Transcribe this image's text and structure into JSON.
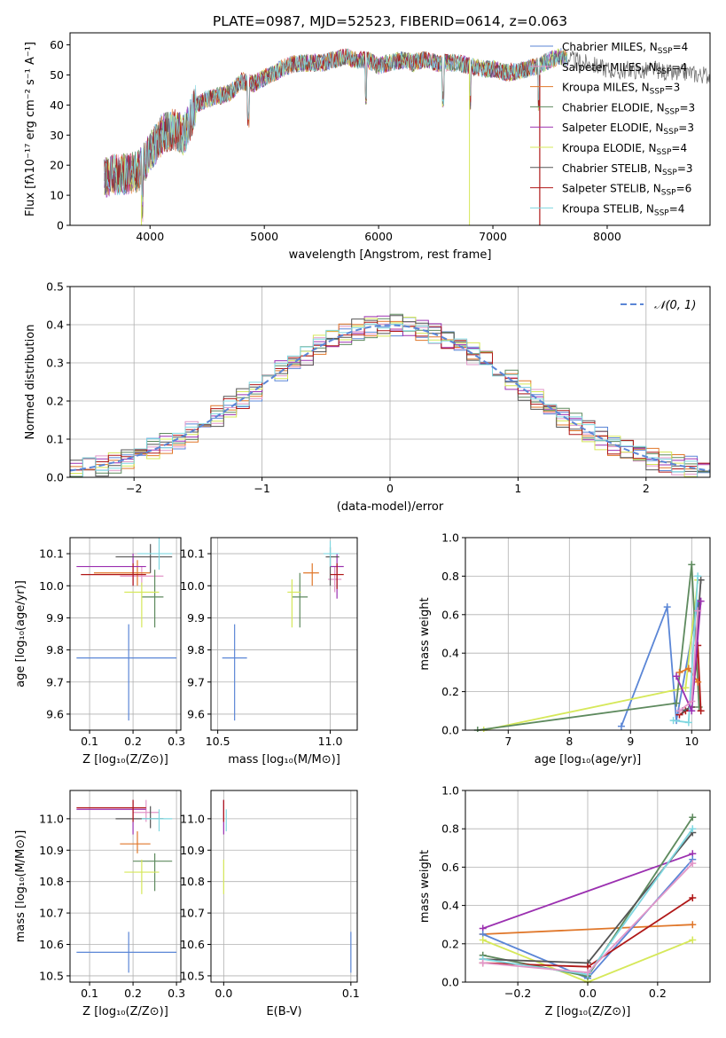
{
  "colors": {
    "Chabrier MILES": "#5b86d6",
    "Salpeter MILES": "#e296c8",
    "Kroupa MILES": "#e0772a",
    "Chabrier ELODIE": "#5e8a5e",
    "Salpeter ELODIE": "#9b30b0",
    "Kroupa ELODIE": "#d6e85a",
    "Chabrier STELIB": "#555555",
    "Salpeter STELIB": "#b01818",
    "Kroupa STELIB": "#7fd7e0"
  },
  "chart_data": [
    {
      "type": "line",
      "title": "PLATE=0987, MJD=52523, FIBERID=0614, z=0.063",
      "xlabel": "wavelength [Angstrom, rest frame]",
      "ylabel": "Flux [fλ10⁻¹⁷ erg cm⁻² s⁻¹ A⁻¹]",
      "xlim": [
        3300,
        8900
      ],
      "ylim": [
        0,
        64
      ],
      "xticks": [
        "4000",
        "5000",
        "6000",
        "7000",
        "8000"
      ],
      "yticks": [
        "0",
        "10",
        "20",
        "30",
        "40",
        "50",
        "60"
      ],
      "legend_loc": "right",
      "series": [
        {
          "name": "Chabrier MILES",
          "legend": "Chabrier MILES, N",
          "sub": "SSP",
          "suffix": "=4"
        },
        {
          "name": "Salpeter MILES",
          "legend": "Salpeter MILES, N",
          "sub": "SSP",
          "suffix": "=4"
        },
        {
          "name": "Kroupa MILES",
          "legend": "Kroupa MILES, N",
          "sub": "SSP",
          "suffix": "=3"
        },
        {
          "name": "Chabrier ELODIE",
          "legend": "Chabrier ELODIE, N",
          "sub": "SSP",
          "suffix": "=3"
        },
        {
          "name": "Salpeter ELODIE",
          "legend": "Salpeter ELODIE, N",
          "sub": "SSP",
          "suffix": "=3"
        },
        {
          "name": "Kroupa ELODIE",
          "legend": "Kroupa ELODIE, N",
          "sub": "SSP",
          "suffix": "=4"
        },
        {
          "name": "Chabrier STELIB",
          "legend": "Chabrier STELIB, N",
          "sub": "SSP",
          "suffix": "=3"
        },
        {
          "name": "Salpeter STELIB",
          "legend": "Salpeter STELIB, N",
          "sub": "SSP",
          "suffix": "=6"
        },
        {
          "name": "Kroupa STELIB",
          "legend": "Kroupa STELIB, N",
          "sub": "SSP",
          "suffix": "=4"
        }
      ],
      "spectrum_envelope": {
        "x": [
          3600,
          3700,
          3800,
          3900,
          4000,
          4100,
          4200,
          4300,
          4400,
          4500,
          4600,
          4700,
          4800,
          4900,
          5000,
          5100,
          5200,
          5300,
          5400,
          5500,
          5600,
          5700,
          5800,
          5900,
          6000,
          6100,
          6200,
          6300,
          6400,
          6500,
          6600,
          6700,
          6800,
          6900,
          7000,
          7100,
          7200,
          7300,
          7400,
          7500,
          7600,
          7700,
          7800,
          7900,
          8000,
          8100,
          8200,
          8300,
          8400,
          8500,
          8600,
          8700,
          8800,
          8900
        ],
        "y": [
          16,
          17,
          17,
          18,
          24,
          30,
          32,
          30,
          40,
          42,
          43,
          44,
          48,
          47,
          49,
          51,
          53,
          54,
          54,
          54,
          55,
          56,
          55,
          55,
          53,
          54,
          55,
          54,
          55,
          54,
          54,
          54,
          53,
          52,
          52,
          51,
          51,
          52,
          53,
          55,
          56,
          55,
          54,
          53,
          52,
          51,
          52,
          51,
          52,
          51,
          50,
          51,
          50,
          50
        ]
      },
      "spectrum_features": {
        "absorption_dips_x": [
          3933,
          4861,
          5890,
          6563,
          6800,
          7400
        ]
      }
    },
    {
      "type": "step",
      "xlabel": "(data-model)/error",
      "ylabel": "Normed distribution",
      "xlim": [
        -2.5,
        2.5
      ],
      "ylim": [
        0,
        0.5
      ],
      "xticks": [
        "−2",
        "−1",
        "0",
        "1",
        "2"
      ],
      "yticks": [
        "0.0",
        "0.1",
        "0.2",
        "0.3",
        "0.4",
        "0.5"
      ],
      "legend": "𝒩(0, 1)",
      "legend_loc": "upper right",
      "bin_width": 0.1,
      "bin_start": -2.5,
      "reference_gaussian": {
        "mean": 0,
        "sigma": 1,
        "style": "dashed",
        "color": "#5b86d6"
      },
      "series": [
        {
          "name": "Chabrier MILES",
          "noise_seed": 1
        },
        {
          "name": "Salpeter MILES",
          "noise_seed": 2
        },
        {
          "name": "Kroupa MILES",
          "noise_seed": 3
        },
        {
          "name": "Chabrier ELODIE",
          "noise_seed": 4
        },
        {
          "name": "Salpeter ELODIE",
          "noise_seed": 5
        },
        {
          "name": "Kroupa ELODIE",
          "noise_seed": 6
        },
        {
          "name": "Chabrier STELIB",
          "noise_seed": 7
        },
        {
          "name": "Salpeter STELIB",
          "noise_seed": 8
        },
        {
          "name": "Kroupa STELIB",
          "noise_seed": 9
        }
      ]
    },
    {
      "type": "scatter",
      "xlabel": "Z [log₁₀(Z/Z⊙)]",
      "ylabel": "age  [log₁₀(age/yr)]",
      "xlim": [
        0.055,
        0.31
      ],
      "ylim": [
        9.55,
        10.15
      ],
      "xticks": [
        "0.1",
        "0.2",
        "0.3"
      ],
      "yticks": [
        "9.6",
        "9.7",
        "9.8",
        "9.9",
        "10.0",
        "10.1"
      ],
      "points": [
        {
          "name": "Chabrier MILES",
          "x": 0.19,
          "xerr": [
            0.07,
            0.3
          ],
          "y": 9.775,
          "yerr": [
            9.58,
            9.88
          ]
        },
        {
          "name": "Salpeter MILES",
          "x": 0.22,
          "xerr": [
            0.17,
            0.27
          ],
          "y": 10.03,
          "yerr": [
            10.0,
            10.06
          ]
        },
        {
          "name": "Kroupa MILES",
          "x": 0.21,
          "xerr": [
            0.11,
            0.24
          ],
          "y": 10.04,
          "yerr": [
            10.0,
            10.08
          ]
        },
        {
          "name": "Chabrier ELODIE",
          "x": 0.25,
          "xerr": [
            0.22,
            0.27
          ],
          "y": 9.965,
          "yerr": [
            9.87,
            10.05
          ]
        },
        {
          "name": "Salpeter ELODIE",
          "x": 0.2,
          "xerr": [
            0.07,
            0.23
          ],
          "y": 10.06,
          "yerr": [
            10.0,
            10.1
          ]
        },
        {
          "name": "Kroupa ELODIE",
          "x": 0.22,
          "xerr": [
            0.18,
            0.26
          ],
          "y": 9.98,
          "yerr": [
            9.87,
            10.01
          ]
        },
        {
          "name": "Chabrier STELIB",
          "x": 0.24,
          "xerr": [
            0.16,
            0.29
          ],
          "y": 10.09,
          "yerr": [
            10.04,
            10.13
          ]
        },
        {
          "name": "Salpeter STELIB",
          "x": 0.2,
          "xerr": [
            0.08,
            0.23
          ],
          "y": 10.035,
          "yerr": [
            10.0,
            10.07
          ]
        },
        {
          "name": "Kroupa STELIB",
          "x": 0.26,
          "xerr": [
            0.21,
            0.29
          ],
          "y": 10.1,
          "yerr": [
            10.05,
            10.15
          ]
        }
      ]
    },
    {
      "type": "scatter",
      "xlabel": "mass [log₁₀(M/M⊙)]",
      "ylabel": "",
      "xlim": [
        10.47,
        11.12
      ],
      "ylim": [
        9.55,
        10.15
      ],
      "xticks": [
        "10.5",
        "11.0"
      ],
      "yticks": [
        "9.6",
        "9.7",
        "9.8",
        "9.9",
        "10.0",
        "10.1"
      ],
      "points": [
        {
          "name": "Chabrier MILES",
          "x": 10.575,
          "xerr": [
            10.52,
            10.63
          ],
          "y": 9.775,
          "yerr": [
            9.58,
            9.88
          ]
        },
        {
          "name": "Salpeter MILES",
          "x": 11.02,
          "xerr": [
            10.99,
            11.05
          ],
          "y": 10.02,
          "yerr": [
            9.98,
            10.06
          ]
        },
        {
          "name": "Kroupa MILES",
          "x": 10.92,
          "xerr": [
            10.88,
            10.95
          ],
          "y": 10.04,
          "yerr": [
            10.0,
            10.07
          ]
        },
        {
          "name": "Chabrier ELODIE",
          "x": 10.865,
          "xerr": [
            10.83,
            10.9
          ],
          "y": 9.965,
          "yerr": [
            9.87,
            10.04
          ]
        },
        {
          "name": "Salpeter ELODIE",
          "x": 11.03,
          "xerr": [
            11.0,
            11.06
          ],
          "y": 10.06,
          "yerr": [
            9.96,
            10.1
          ]
        },
        {
          "name": "Kroupa ELODIE",
          "x": 10.83,
          "xerr": [
            10.81,
            10.87
          ],
          "y": 9.98,
          "yerr": [
            9.87,
            10.02
          ]
        },
        {
          "name": "Chabrier STELIB",
          "x": 11.0,
          "xerr": [
            10.98,
            11.04
          ],
          "y": 10.09,
          "yerr": [
            10.0,
            10.12
          ]
        },
        {
          "name": "Salpeter STELIB",
          "x": 11.03,
          "xerr": [
            11.0,
            11.06
          ],
          "y": 10.035,
          "yerr": [
            9.99,
            10.07
          ]
        },
        {
          "name": "Kroupa STELIB",
          "x": 11.0,
          "xerr": [
            10.97,
            11.04
          ],
          "y": 10.1,
          "yerr": [
            10.06,
            10.14
          ]
        }
      ]
    },
    {
      "type": "line",
      "xlabel": "age  [log₁₀(age/yr)]",
      "ylabel": "mass weight",
      "xlim": [
        6.3,
        10.3
      ],
      "ylim": [
        0,
        1.0
      ],
      "xticks": [
        "7",
        "8",
        "9",
        "10"
      ],
      "yticks": [
        "0.0",
        "0.2",
        "0.4",
        "0.6",
        "0.8",
        "1.0"
      ],
      "series": [
        {
          "name": "Chabrier MILES",
          "x": [
            8.85,
            9.6,
            9.75,
            10.1
          ],
          "y": [
            0.02,
            0.64,
            0.05,
            0.66
          ]
        },
        {
          "name": "Kroupa ELODIE",
          "x": [
            6.6,
            9.9,
            10.1
          ],
          "y": [
            0.0,
            0.22,
            0.78
          ]
        },
        {
          "name": "Chabrier ELODIE",
          "x": [
            6.5,
            9.75,
            10.0,
            10.12
          ],
          "y": [
            0.0,
            0.14,
            0.86,
            0.12
          ]
        },
        {
          "name": "Salpeter STELIB",
          "x": [
            9.8,
            9.9,
            10.0,
            10.1,
            10.15
          ],
          "y": [
            0.08,
            0.1,
            0.12,
            0.44,
            0.1
          ]
        },
        {
          "name": "Chabrier STELIB",
          "x": [
            9.85,
            10.0,
            10.15
          ],
          "y": [
            0.1,
            0.12,
            0.78
          ]
        },
        {
          "name": "Kroupa MILES",
          "x": [
            9.8,
            9.95,
            10.1
          ],
          "y": [
            0.3,
            0.32,
            0.25
          ]
        },
        {
          "name": "Kroupa STELIB",
          "x": [
            9.7,
            9.95,
            10.1
          ],
          "y": [
            0.05,
            0.04,
            0.8
          ]
        },
        {
          "name": "Salpeter ELODIE",
          "x": [
            9.75,
            10.0,
            10.15
          ],
          "y": [
            0.28,
            0.1,
            0.67
          ]
        },
        {
          "name": "Salpeter MILES",
          "x": [
            9.8,
            10.0,
            10.1
          ],
          "y": [
            0.1,
            0.15,
            0.62
          ]
        }
      ]
    },
    {
      "type": "scatter",
      "xlabel": "Z [log₁₀(Z/Z⊙)]",
      "ylabel": "mass [log₁₀(M/M⊙)]",
      "xlim": [
        0.055,
        0.31
      ],
      "ylim": [
        10.48,
        11.09
      ],
      "xticks": [
        "0.1",
        "0.2",
        "0.3"
      ],
      "yticks": [
        "10.5",
        "10.6",
        "10.7",
        "10.8",
        "10.9",
        "11.0"
      ],
      "points": [
        {
          "name": "Chabrier MILES",
          "x": 0.19,
          "xerr": [
            0.07,
            0.3
          ],
          "y": 10.575,
          "yerr": [
            10.51,
            10.64
          ]
        },
        {
          "name": "Salpeter MILES",
          "x": 0.23,
          "xerr": [
            0.2,
            0.26
          ],
          "y": 11.02,
          "yerr": [
            10.99,
            11.06
          ]
        },
        {
          "name": "Kroupa MILES",
          "x": 0.21,
          "xerr": [
            0.17,
            0.24
          ],
          "y": 10.92,
          "yerr": [
            10.89,
            10.96
          ]
        },
        {
          "name": "Chabrier ELODIE",
          "x": 0.25,
          "xerr": [
            0.2,
            0.29
          ],
          "y": 10.865,
          "yerr": [
            10.77,
            10.89
          ]
        },
        {
          "name": "Salpeter ELODIE",
          "x": 0.2,
          "xerr": [
            0.07,
            0.23
          ],
          "y": 11.03,
          "yerr": [
            10.95,
            11.06
          ]
        },
        {
          "name": "Kroupa ELODIE",
          "x": 0.22,
          "xerr": [
            0.18,
            0.26
          ],
          "y": 10.83,
          "yerr": [
            10.76,
            10.87
          ]
        },
        {
          "name": "Chabrier STELIB",
          "x": 0.24,
          "xerr": [
            0.16,
            0.27
          ],
          "y": 11.0,
          "yerr": [
            10.97,
            11.04
          ]
        },
        {
          "name": "Salpeter STELIB",
          "x": 0.2,
          "xerr": [
            0.07,
            0.23
          ],
          "y": 11.035,
          "yerr": [
            10.99,
            11.06
          ]
        },
        {
          "name": "Kroupa STELIB",
          "x": 0.26,
          "xerr": [
            0.22,
            0.29
          ],
          "y": 11.0,
          "yerr": [
            10.96,
            11.03
          ]
        }
      ]
    },
    {
      "type": "scatter",
      "xlabel": "E(B-V)",
      "ylabel": "",
      "xlim": [
        -0.01,
        0.105
      ],
      "ylim": [
        10.48,
        11.09
      ],
      "xticks": [
        "0.0",
        "0.1"
      ],
      "yticks": [
        "10.5",
        "10.6",
        "10.7",
        "10.8",
        "10.9",
        "11.0"
      ],
      "points": [
        {
          "name": "Chabrier MILES",
          "x": 0.1,
          "y": 10.575,
          "yerr": [
            10.51,
            10.64
          ]
        },
        {
          "name": "Kroupa ELODIE",
          "x": 0.0,
          "y": 10.83,
          "yerr": [
            10.76,
            10.87
          ]
        },
        {
          "name": "Salpeter ELODIE",
          "x": 0.0,
          "y": 11.03,
          "yerr": [
            10.95,
            11.06
          ]
        },
        {
          "name": "Kroupa STELIB",
          "x": 0.002,
          "y": 11.0,
          "yerr": [
            10.96,
            11.03
          ]
        },
        {
          "name": "Salpeter STELIB",
          "x": 0.0,
          "y": 11.035,
          "yerr": [
            10.99,
            11.06
          ]
        }
      ]
    },
    {
      "type": "line",
      "xlabel": "Z [log₁₀(Z/Z⊙)]",
      "ylabel": "mass weight",
      "xlim": [
        -0.35,
        0.35
      ],
      "ylim": [
        0,
        1.0
      ],
      "xticks": [
        "−0.2",
        "0.0",
        "0.2"
      ],
      "yticks": [
        "0.0",
        "0.2",
        "0.4",
        "0.6",
        "0.8",
        "1.0"
      ],
      "series": [
        {
          "name": "Salpeter ELODIE",
          "x": [
            -0.3,
            0.3
          ],
          "y": [
            0.28,
            0.67
          ]
        },
        {
          "name": "Kroupa MILES",
          "x": [
            -0.3,
            0.3
          ],
          "y": [
            0.25,
            0.3
          ]
        },
        {
          "name": "Chabrier MILES",
          "x": [
            -0.3,
            0.0,
            0.3
          ],
          "y": [
            0.25,
            0.02,
            0.64
          ]
        },
        {
          "name": "Kroupa ELODIE",
          "x": [
            -0.3,
            0.0,
            0.3
          ],
          "y": [
            0.22,
            0.0,
            0.22
          ]
        },
        {
          "name": "Chabrier ELODIE",
          "x": [
            -0.3,
            0.0,
            0.3
          ],
          "y": [
            0.14,
            0.03,
            0.86
          ]
        },
        {
          "name": "Chabrier STELIB",
          "x": [
            -0.3,
            0.0,
            0.3
          ],
          "y": [
            0.12,
            0.1,
            0.78
          ]
        },
        {
          "name": "Salpeter STELIB",
          "x": [
            -0.3,
            0.0,
            0.3
          ],
          "y": [
            0.1,
            0.08,
            0.44
          ]
        },
        {
          "name": "Kroupa STELIB",
          "x": [
            -0.3,
            0.0,
            0.3
          ],
          "y": [
            0.12,
            0.04,
            0.8
          ]
        },
        {
          "name": "Salpeter MILES",
          "x": [
            -0.3,
            0.0,
            0.3
          ],
          "y": [
            0.1,
            0.05,
            0.62
          ]
        }
      ]
    }
  ]
}
